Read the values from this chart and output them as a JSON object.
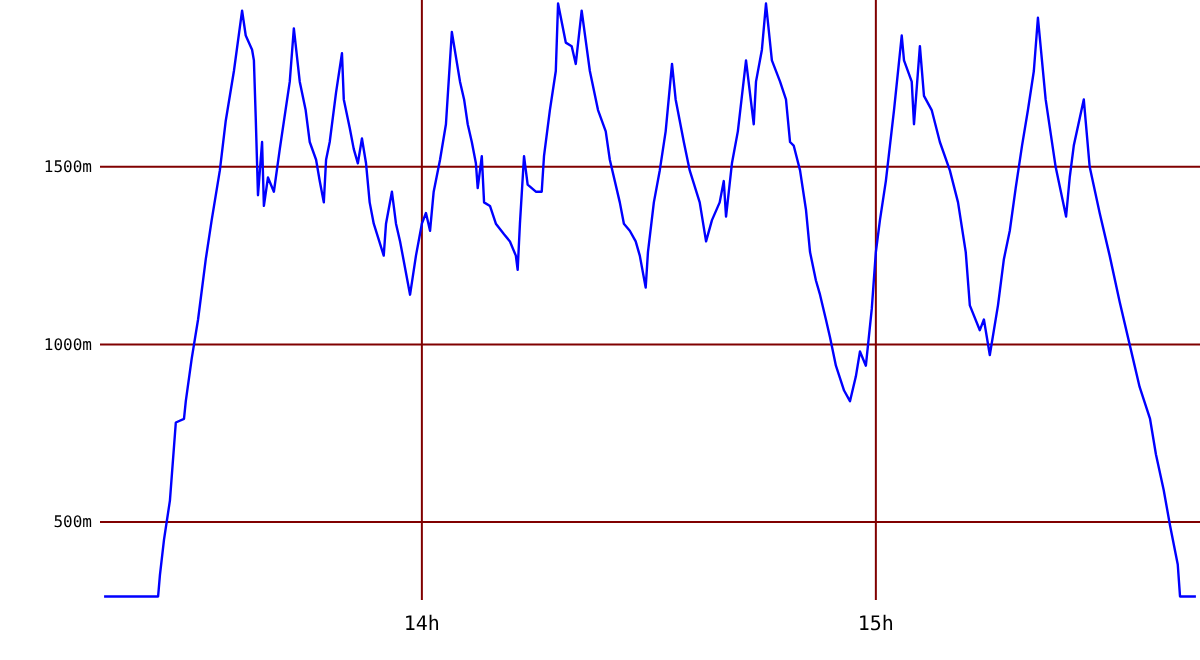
{
  "chart_data": {
    "type": "line",
    "x": [
      13.3,
      13.419,
      13.423,
      13.432,
      13.445,
      13.458,
      13.476,
      13.48,
      13.493,
      13.507,
      13.524,
      13.537,
      13.555,
      13.568,
      13.586,
      13.604,
      13.612,
      13.626,
      13.63,
      13.634,
      13.639,
      13.648,
      13.652,
      13.661,
      13.674,
      13.687,
      13.709,
      13.718,
      13.731,
      13.744,
      13.753,
      13.767,
      13.775,
      13.784,
      13.789,
      13.797,
      13.811,
      13.824,
      13.828,
      13.841,
      13.85,
      13.859,
      13.868,
      13.877,
      13.885,
      13.894,
      13.916,
      13.921,
      13.934,
      13.943,
      13.952,
      13.974,
      13.987,
      14.0,
      14.009,
      14.018,
      14.026,
      14.04,
      14.053,
      14.066,
      14.084,
      14.093,
      14.101,
      14.11,
      14.119,
      14.123,
      14.132,
      14.137,
      14.15,
      14.163,
      14.181,
      14.194,
      14.207,
      14.211,
      14.216,
      14.225,
      14.233,
      14.251,
      14.264,
      14.269,
      14.282,
      14.295,
      14.3,
      14.317,
      14.33,
      14.339,
      14.352,
      14.37,
      14.388,
      14.405,
      14.414,
      14.436,
      14.445,
      14.458,
      14.471,
      14.48,
      14.493,
      14.498,
      14.511,
      14.524,
      14.537,
      14.551,
      14.559,
      14.577,
      14.59,
      14.612,
      14.626,
      14.639,
      14.656,
      14.665,
      14.67,
      14.683,
      14.696,
      14.714,
      14.731,
      14.736,
      14.749,
      14.758,
      14.771,
      14.789,
      14.802,
      14.811,
      14.819,
      14.833,
      14.846,
      14.855,
      14.868,
      14.877,
      14.89,
      14.899,
      14.912,
      14.93,
      14.943,
      14.956,
      14.965,
      14.978,
      14.991,
      15.0,
      15.009,
      15.022,
      15.04,
      15.057,
      15.062,
      15.079,
      15.084,
      15.097,
      15.106,
      15.123,
      15.141,
      15.163,
      15.181,
      15.198,
      15.207,
      15.229,
      15.238,
      15.251,
      15.269,
      15.282,
      15.295,
      15.308,
      15.322,
      15.335,
      15.348,
      15.357,
      15.374,
      15.396,
      15.419,
      15.427,
      15.436,
      15.458,
      15.471,
      15.493,
      15.515,
      15.537,
      15.559,
      15.581,
      15.604,
      15.617,
      15.634,
      15.648,
      15.665,
      15.67,
      15.705
    ],
    "values": [
      290,
      290,
      350,
      450,
      560,
      780,
      790,
      840,
      960,
      1070,
      1240,
      1350,
      1490,
      1630,
      1770,
      1940,
      1870,
      1830,
      1800,
      1640,
      1420,
      1570,
      1390,
      1470,
      1430,
      1550,
      1740,
      1890,
      1740,
      1660,
      1570,
      1520,
      1460,
      1400,
      1520,
      1570,
      1710,
      1820,
      1690,
      1610,
      1550,
      1510,
      1580,
      1510,
      1400,
      1340,
      1250,
      1340,
      1430,
      1340,
      1290,
      1140,
      1250,
      1340,
      1370,
      1320,
      1430,
      1520,
      1620,
      1880,
      1740,
      1690,
      1620,
      1570,
      1510,
      1440,
      1530,
      1400,
      1390,
      1340,
      1310,
      1290,
      1250,
      1210,
      1340,
      1530,
      1450,
      1430,
      1430,
      1530,
      1660,
      1770,
      1960,
      1850,
      1840,
      1790,
      1940,
      1770,
      1660,
      1600,
      1520,
      1400,
      1340,
      1320,
      1290,
      1250,
      1160,
      1260,
      1400,
      1490,
      1600,
      1790,
      1690,
      1570,
      1490,
      1400,
      1290,
      1350,
      1400,
      1460,
      1360,
      1510,
      1600,
      1800,
      1620,
      1740,
      1830,
      1960,
      1800,
      1740,
      1690,
      1570,
      1560,
      1490,
      1380,
      1260,
      1180,
      1140,
      1070,
      1020,
      940,
      870,
      840,
      910,
      980,
      940,
      1100,
      1260,
      1350,
      1460,
      1660,
      1870,
      1800,
      1740,
      1620,
      1840,
      1700,
      1660,
      1570,
      1490,
      1400,
      1260,
      1110,
      1040,
      1070,
      970,
      1110,
      1240,
      1320,
      1440,
      1560,
      1660,
      1770,
      1920,
      1690,
      1500,
      1360,
      1470,
      1560,
      1690,
      1500,
      1370,
      1250,
      1120,
      1000,
      880,
      790,
      690,
      590,
      490,
      380,
      290,
      290
    ],
    "color": "#0000ff",
    "xlim": [
      13.291,
      15.714
    ],
    "ylim": [
      280,
      1970
    ],
    "xticks": [
      {
        "value": 14,
        "label": "14h"
      },
      {
        "value": 15,
        "label": "15h"
      }
    ],
    "yticks": [
      {
        "value": 500,
        "label": "500m"
      },
      {
        "value": 1000,
        "label": "1000m"
      },
      {
        "value": 1500,
        "label": "1500m"
      }
    ],
    "grid": true,
    "marker": "none",
    "line_style": "solid"
  }
}
